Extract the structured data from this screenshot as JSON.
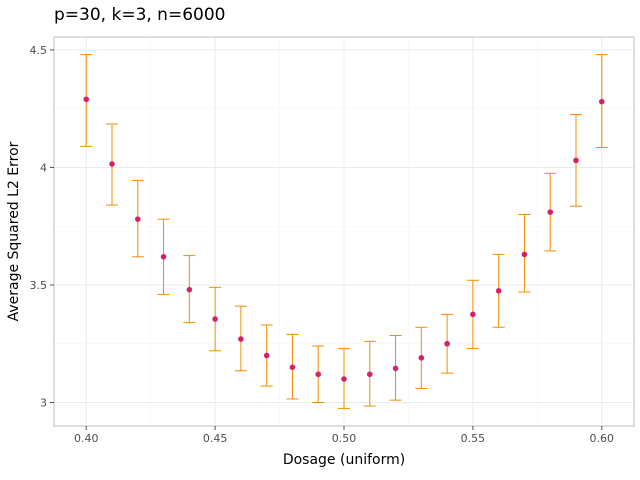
{
  "chart_data": {
    "type": "scatter",
    "title": "p=30, k=3, n=6000",
    "xlabel": "Dosage (uniform)",
    "ylabel": "Average Squared L2 Error",
    "xlim": [
      0.3875,
      0.6125
    ],
    "ylim": [
      2.9,
      4.555
    ],
    "x_ticks": [
      0.4,
      0.45,
      0.5,
      0.55,
      0.6
    ],
    "x_tick_labels": [
      "0.40",
      "0.45",
      "0.50",
      "0.55",
      "0.60"
    ],
    "y_ticks": [
      3,
      3.5,
      4,
      4.5
    ],
    "y_tick_labels": [
      "3",
      "3.5",
      "4",
      "4.5"
    ],
    "grid": true,
    "colors": {
      "point": "#d6206e",
      "errorbar": "#f28c00"
    },
    "points": [
      {
        "x": 0.4,
        "y": 4.29,
        "lo": 4.09,
        "hi": 4.48
      },
      {
        "x": 0.41,
        "y": 4.015,
        "lo": 3.84,
        "hi": 4.185
      },
      {
        "x": 0.42,
        "y": 3.78,
        "lo": 3.62,
        "hi": 3.945
      },
      {
        "x": 0.43,
        "y": 3.62,
        "lo": 3.46,
        "hi": 3.78
      },
      {
        "x": 0.44,
        "y": 3.48,
        "lo": 3.34,
        "hi": 3.625
      },
      {
        "x": 0.45,
        "y": 3.355,
        "lo": 3.22,
        "hi": 3.49
      },
      {
        "x": 0.46,
        "y": 3.27,
        "lo": 3.135,
        "hi": 3.41
      },
      {
        "x": 0.47,
        "y": 3.2,
        "lo": 3.07,
        "hi": 3.33
      },
      {
        "x": 0.48,
        "y": 3.15,
        "lo": 3.015,
        "hi": 3.29
      },
      {
        "x": 0.49,
        "y": 3.12,
        "lo": 3.0,
        "hi": 3.24
      },
      {
        "x": 0.5,
        "y": 3.1,
        "lo": 2.975,
        "hi": 3.23
      },
      {
        "x": 0.51,
        "y": 3.12,
        "lo": 2.985,
        "hi": 3.26
      },
      {
        "x": 0.52,
        "y": 3.145,
        "lo": 3.01,
        "hi": 3.285
      },
      {
        "x": 0.53,
        "y": 3.19,
        "lo": 3.06,
        "hi": 3.32
      },
      {
        "x": 0.54,
        "y": 3.25,
        "lo": 3.125,
        "hi": 3.375
      },
      {
        "x": 0.55,
        "y": 3.375,
        "lo": 3.23,
        "hi": 3.52
      },
      {
        "x": 0.56,
        "y": 3.475,
        "lo": 3.32,
        "hi": 3.63
      },
      {
        "x": 0.57,
        "y": 3.63,
        "lo": 3.47,
        "hi": 3.8
      },
      {
        "x": 0.58,
        "y": 3.81,
        "lo": 3.645,
        "hi": 3.975
      },
      {
        "x": 0.59,
        "y": 4.03,
        "lo": 3.835,
        "hi": 4.225
      },
      {
        "x": 0.6,
        "y": 4.28,
        "lo": 4.085,
        "hi": 4.48
      }
    ]
  }
}
